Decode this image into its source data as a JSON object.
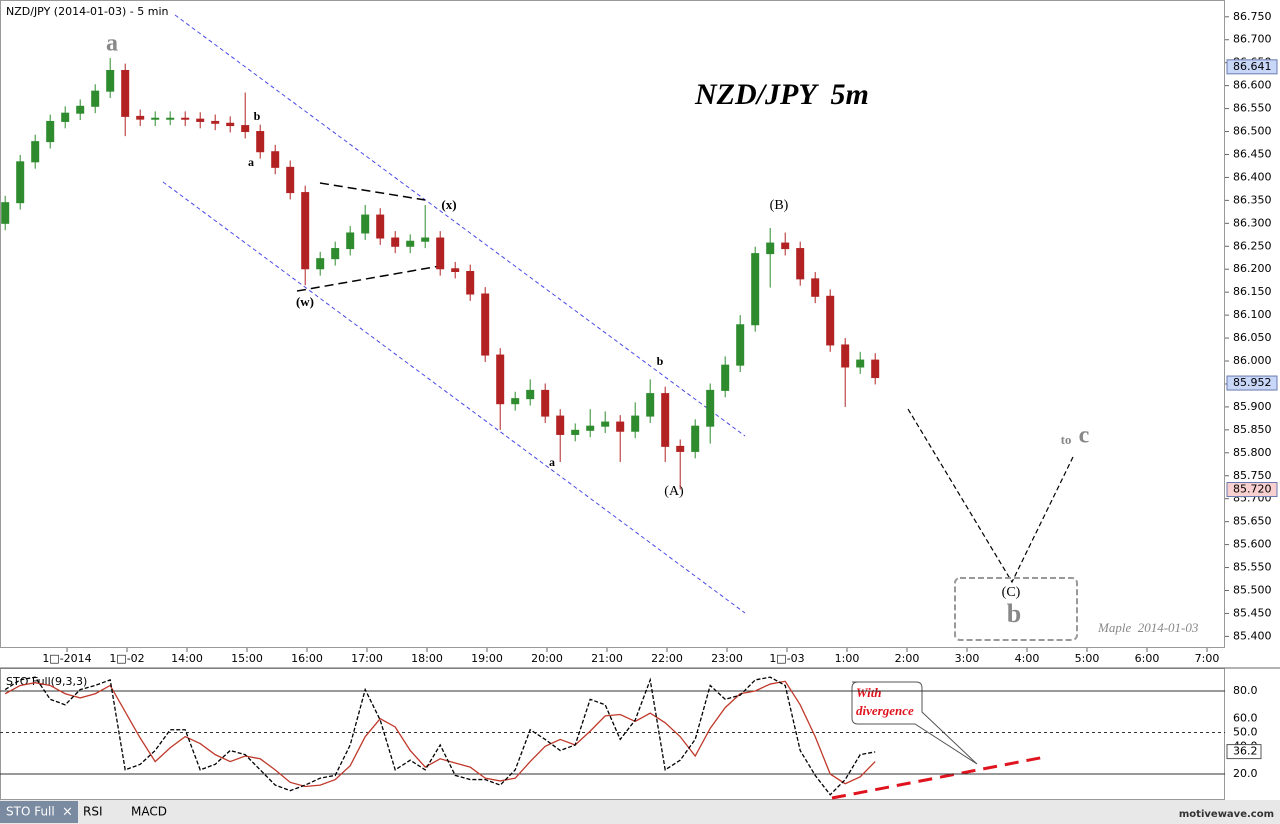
{
  "chart_data": [
    {
      "type": "candlestick",
      "title": "NZD/JPY (2014-01-03) - 5 min",
      "subtitle": "NZD/JPY  5m",
      "up_color": "#2e8b2e",
      "down_color": "#b22222",
      "xlim": [
        -1.1167,
        19.3
      ],
      "ylim": [
        85.3747,
        86.7866
      ],
      "xticks": [
        {
          "value": 0,
          "label": "1□-2014"
        },
        {
          "value": 1,
          "label": "1□-02"
        },
        {
          "value": 2,
          "label": "14:00"
        },
        {
          "value": 3,
          "label": "15:00"
        },
        {
          "value": 4,
          "label": "16:00"
        },
        {
          "value": 5,
          "label": "17:00"
        },
        {
          "value": 6,
          "label": "18:00"
        },
        {
          "value": 7,
          "label": "19:00"
        },
        {
          "value": 8,
          "label": "20:00"
        },
        {
          "value": 9,
          "label": "21:00"
        },
        {
          "value": 10,
          "label": "22:00"
        },
        {
          "value": 11,
          "label": "23:00"
        },
        {
          "value": 12,
          "label": "1□-03"
        },
        {
          "value": 13,
          "label": "1:00"
        },
        {
          "value": 14,
          "label": "2:00"
        },
        {
          "value": 15,
          "label": "3:00"
        },
        {
          "value": 16,
          "label": "4:00"
        },
        {
          "value": 17,
          "label": "5:00"
        },
        {
          "value": 18,
          "label": "6:00"
        },
        {
          "value": 19,
          "label": "7:00"
        }
      ],
      "yticks": [
        {
          "value": 86.75,
          "label": "86.750"
        },
        {
          "value": 86.7,
          "label": "86.700"
        },
        {
          "value": 86.65,
          "label": "86.650"
        },
        {
          "value": 86.6,
          "label": "86.600"
        },
        {
          "value": 86.55,
          "label": "86.550"
        },
        {
          "value": 86.5,
          "label": "86.500"
        },
        {
          "value": 86.45,
          "label": "86.450"
        },
        {
          "value": 86.4,
          "label": "86.400"
        },
        {
          "value": 86.35,
          "label": "86.350"
        },
        {
          "value": 86.3,
          "label": "86.300"
        },
        {
          "value": 86.25,
          "label": "86.250"
        },
        {
          "value": 86.2,
          "label": "86.200"
        },
        {
          "value": 86.15,
          "label": "86.150"
        },
        {
          "value": 86.1,
          "label": "86.100"
        },
        {
          "value": 86.05,
          "label": "86.050"
        },
        {
          "value": 86.0,
          "label": "86.000"
        },
        {
          "value": 85.95,
          "label": "85.950"
        },
        {
          "value": 85.9,
          "label": "85.900"
        },
        {
          "value": 85.85,
          "label": "85.850"
        },
        {
          "value": 85.8,
          "label": "85.800"
        },
        {
          "value": 85.75,
          "label": "85.750"
        },
        {
          "value": 85.7,
          "label": "85.700"
        },
        {
          "value": 85.65,
          "label": "85.650"
        },
        {
          "value": 85.6,
          "label": "85.600"
        },
        {
          "value": 85.55,
          "label": "85.550"
        },
        {
          "value": 85.5,
          "label": "85.500"
        },
        {
          "value": 85.45,
          "label": "85.450"
        },
        {
          "value": 85.4,
          "label": "85.400"
        }
      ],
      "price_markers": [
        {
          "value": 86.641,
          "label": "86.641",
          "color": "#c8d6f8"
        },
        {
          "value": 85.952,
          "label": "85.952",
          "color": "#c8d6f8"
        },
        {
          "value": 85.72,
          "label": "85.720",
          "color": "#f8d0d0"
        }
      ],
      "x": [
        -1.03,
        -0.78,
        -0.53,
        -0.28,
        -0.03,
        0.22,
        0.47,
        0.72,
        0.97,
        1.22,
        1.47,
        1.72,
        1.97,
        2.22,
        2.47,
        2.72,
        2.97,
        3.22,
        3.47,
        3.72,
        3.97,
        4.22,
        4.47,
        4.72,
        4.97,
        5.22,
        5.47,
        5.72,
        5.97,
        6.22,
        6.47,
        6.72,
        6.97,
        7.22,
        7.47,
        7.72,
        7.97,
        8.22,
        8.47,
        8.72,
        8.97,
        9.22,
        9.47,
        9.72,
        9.97,
        10.22,
        10.47,
        10.72,
        10.97,
        11.22,
        11.47,
        11.72,
        11.97,
        12.22,
        12.47,
        12.72,
        12.97,
        13.22,
        13.47
      ],
      "open": [
        86.3,
        86.345,
        86.434,
        86.478,
        86.522,
        86.54,
        86.555,
        86.588,
        86.633,
        86.533,
        86.527,
        86.529,
        86.529,
        86.527,
        86.522,
        86.518,
        86.513,
        86.5,
        86.456,
        86.422,
        86.367,
        86.201,
        86.223,
        86.245,
        86.279,
        86.318,
        86.268,
        86.25,
        86.261,
        86.268,
        86.201,
        86.195,
        86.146,
        86.013,
        85.907,
        85.918,
        85.936,
        85.88,
        85.84,
        85.849,
        85.858,
        85.867,
        85.847,
        85.88,
        85.929,
        85.814,
        85.803,
        85.858,
        85.936,
        85.991,
        86.079,
        86.234,
        86.257,
        86.245,
        86.179,
        86.141,
        86.035,
        85.987,
        86.002
      ],
      "high": [
        86.36,
        86.449,
        86.493,
        86.537,
        86.555,
        86.57,
        86.603,
        86.66,
        86.648,
        86.548,
        86.544,
        86.544,
        86.544,
        86.542,
        86.537,
        86.533,
        86.585,
        86.515,
        86.471,
        86.437,
        86.382,
        86.238,
        86.26,
        86.294,
        86.34,
        86.333,
        86.283,
        86.276,
        86.34,
        86.283,
        86.216,
        86.21,
        86.161,
        86.028,
        85.933,
        85.96,
        85.951,
        85.895,
        85.864,
        85.895,
        85.89,
        85.882,
        85.91,
        85.96,
        85.944,
        85.829,
        85.873,
        85.951,
        86.01,
        86.1,
        86.249,
        86.29,
        86.28,
        86.26,
        86.194,
        86.156,
        86.05,
        86.02,
        86.017
      ],
      "low": [
        86.285,
        86.33,
        86.419,
        86.463,
        86.507,
        86.525,
        86.54,
        86.573,
        86.49,
        86.512,
        86.512,
        86.514,
        86.512,
        86.507,
        86.503,
        86.498,
        86.485,
        86.441,
        86.407,
        86.352,
        86.165,
        86.186,
        86.208,
        86.23,
        86.264,
        86.253,
        86.235,
        86.235,
        86.246,
        86.186,
        86.18,
        86.131,
        85.998,
        85.85,
        85.892,
        85.903,
        85.865,
        85.78,
        85.825,
        85.834,
        85.843,
        85.78,
        85.832,
        85.865,
        85.78,
        85.72,
        85.788,
        85.82,
        85.921,
        85.976,
        86.064,
        86.16,
        86.23,
        86.164,
        86.126,
        86.02,
        85.9,
        85.972,
        85.949
      ],
      "close": [
        86.345,
        86.434,
        86.478,
        86.522,
        86.54,
        86.555,
        86.588,
        86.633,
        86.533,
        86.527,
        86.529,
        86.529,
        86.527,
        86.522,
        86.518,
        86.513,
        86.5,
        86.456,
        86.422,
        86.367,
        86.201,
        86.223,
        86.245,
        86.279,
        86.318,
        86.268,
        86.25,
        86.261,
        86.268,
        86.201,
        86.195,
        86.146,
        86.013,
        85.907,
        85.918,
        85.936,
        85.88,
        85.84,
        85.849,
        85.858,
        85.867,
        85.847,
        85.88,
        85.929,
        85.814,
        85.803,
        85.858,
        85.936,
        85.991,
        86.079,
        86.234,
        86.257,
        86.245,
        86.179,
        86.141,
        86.035,
        85.987,
        86.002,
        85.964
      ],
      "annotations": [
        "a",
        "b",
        "a",
        "(w)",
        "(x)",
        "b",
        "a",
        "(A)",
        "(B)",
        "(C)",
        "b",
        "to",
        "c",
        "Maple  2014-01-03"
      ]
    },
    {
      "type": "line",
      "title": "STO Full(9,3,3)",
      "xlim": [
        -1.1167,
        19.3
      ],
      "ylim": [
        0,
        100
      ],
      "yticks": [
        {
          "value": 80,
          "label": "80.0"
        },
        {
          "value": 60,
          "label": "60.0"
        },
        {
          "value": 50,
          "label": "50.0"
        },
        {
          "value": 40,
          "label": "40.0"
        },
        {
          "value": 20,
          "label": "20.0"
        }
      ],
      "price_markers": [
        {
          "value": 36.2,
          "label": "36.2",
          "color": "#ffffff"
        }
      ],
      "x": [
        -1.03,
        -0.78,
        -0.53,
        -0.28,
        -0.03,
        0.22,
        0.47,
        0.72,
        0.97,
        1.22,
        1.47,
        1.72,
        1.97,
        2.22,
        2.47,
        2.72,
        2.97,
        3.22,
        3.47,
        3.72,
        3.97,
        4.22,
        4.47,
        4.72,
        4.97,
        5.22,
        5.47,
        5.72,
        5.97,
        6.22,
        6.47,
        6.72,
        6.97,
        7.22,
        7.47,
        7.72,
        7.97,
        8.22,
        8.47,
        8.72,
        8.97,
        9.22,
        9.47,
        9.72,
        9.97,
        10.22,
        10.47,
        10.72,
        10.97,
        11.22,
        11.47,
        11.72,
        11.97,
        12.22,
        12.47,
        12.72,
        12.97,
        13.22,
        13.47
      ],
      "series": [
        {
          "color": "#000000",
          "values": [
            81,
            88,
            90,
            74,
            70,
            81,
            84,
            88,
            23,
            27,
            37,
            52,
            52,
            23,
            27,
            37,
            34,
            23,
            12,
            8,
            12,
            17,
            19,
            41,
            81,
            59,
            23,
            30,
            23,
            41,
            19,
            16,
            16,
            12,
            23,
            52,
            45,
            37,
            41,
            74,
            70,
            45,
            59,
            88,
            23,
            30,
            45,
            84,
            74,
            77,
            88,
            90,
            84,
            37,
            19,
            5,
            16,
            34,
            36
          ]
        },
        {
          "color": "#c0392b",
          "values": [
            78,
            84,
            86,
            84,
            78,
            75,
            78,
            84,
            65,
            46,
            29,
            39,
            47,
            42,
            34,
            29,
            33,
            31,
            23,
            14,
            11,
            12,
            16,
            26,
            47,
            60,
            54,
            37,
            25,
            31,
            28,
            25,
            17,
            15,
            17,
            29,
            40,
            45,
            41,
            51,
            62,
            63,
            58,
            64,
            57,
            47,
            33,
            53,
            68,
            78,
            80,
            85,
            87,
            70,
            47,
            20,
            13,
            18,
            29
          ]
        }
      ],
      "annotation": [
        "With",
        "divergence"
      ]
    }
  ],
  "tabs": [
    "STO Full",
    "×",
    "RSI",
    "MACD"
  ],
  "footer": "motivewave.com"
}
